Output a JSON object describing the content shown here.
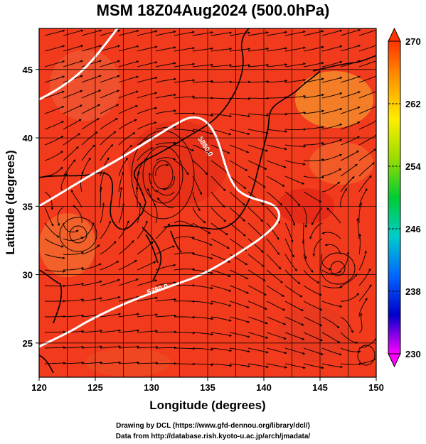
{
  "title": "MSM 18Z04Aug2024 (500.0hPa)",
  "map": {
    "x_axis": {
      "label": "Longitude (degrees)",
      "range": [
        120,
        150
      ],
      "ticks": [
        "120",
        "125",
        "130",
        "135",
        "140",
        "145",
        "150"
      ]
    },
    "y_axis": {
      "label": "Latitude  (degrees)",
      "range": [
        22.5,
        48
      ],
      "ticks": [
        "25",
        "30",
        "35",
        "40",
        "45"
      ]
    },
    "field": "temperature shading with streamlines",
    "contour": {
      "labels": [
        "5880.0",
        "5880.0"
      ],
      "color": "#ffffff"
    },
    "vortices": [
      {
        "lon": 131.0,
        "lat": 37.5,
        "sense": "anticyclonic"
      },
      {
        "lon": 123.0,
        "lat": 33.5,
        "sense": "cyclonic"
      },
      {
        "lon": 146.0,
        "lat": 31.0,
        "sense": "cyclonic"
      },
      {
        "lon": 148.5,
        "lat": 25.5,
        "sense": "cyclonic"
      }
    ]
  },
  "colorbar": {
    "ticks": [
      "270",
      "262",
      "254",
      "246",
      "238",
      "230"
    ],
    "min": 230,
    "max": 270,
    "colors": [
      "#ff00ff",
      "#0000cc",
      "#0066ff",
      "#00cccc",
      "#00cc33",
      "#99dd00",
      "#ffee00",
      "#ff9900",
      "#ff3300"
    ]
  },
  "credits": {
    "line1": "Drawing by DCL (https://www.gfd-dennou.org/library/dcl/)",
    "line2": "Data from http://database.rish.kyoto-u.ac.jp/arch/jmadata/"
  }
}
